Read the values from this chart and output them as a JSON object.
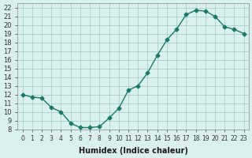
{
  "x": [
    0,
    1,
    2,
    3,
    4,
    5,
    6,
    7,
    8,
    9,
    10,
    11,
    12,
    13,
    14,
    15,
    16,
    17,
    18,
    19,
    20,
    21,
    22,
    23
  ],
  "y": [
    12.0,
    11.7,
    11.6,
    10.5,
    10.0,
    8.7,
    8.2,
    8.2,
    8.3,
    9.3,
    10.4,
    12.5,
    13.0,
    14.5,
    16.5,
    18.3,
    19.5,
    21.2,
    21.7,
    21.6,
    21.0,
    19.8,
    19.5,
    19.0
  ],
  "xlim": [
    -0.5,
    23.5
  ],
  "ylim": [
    8,
    22.5
  ],
  "yticks": [
    8,
    9,
    10,
    11,
    12,
    13,
    14,
    15,
    16,
    17,
    18,
    19,
    20,
    21,
    22
  ],
  "xticks": [
    0,
    1,
    2,
    3,
    4,
    5,
    6,
    7,
    8,
    9,
    10,
    11,
    12,
    13,
    14,
    15,
    16,
    17,
    18,
    19,
    20,
    21,
    22,
    23
  ],
  "xlabel": "Humidex (Indice chaleur)",
  "line_color": "#1a7a6a",
  "marker": "D",
  "marker_size": 2.5,
  "bg_color": "#d9f0ee",
  "grid_color": "#a0c8c0"
}
